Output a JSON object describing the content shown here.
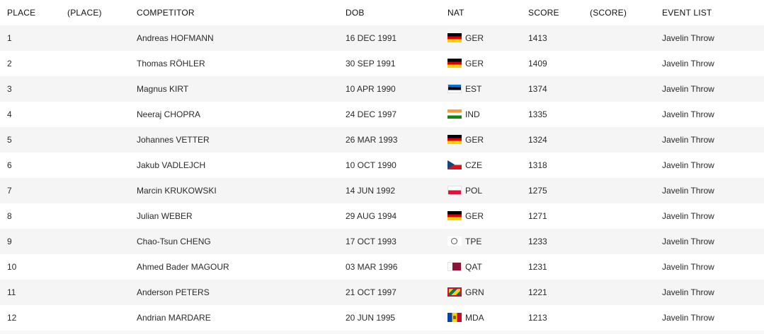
{
  "table": {
    "headers": {
      "place": "PLACE",
      "place_alt": "(PLACE)",
      "competitor": "COMPETITOR",
      "dob": "DOB",
      "nat": "NAT",
      "score": "SCORE",
      "score_alt": "(SCORE)",
      "event_list": "EVENT LIST"
    },
    "rows": [
      {
        "place": "1",
        "competitor": "Andreas HOFMANN",
        "dob": "16 DEC 1991",
        "nat": "GER",
        "flag_icon": "germany-flag-icon",
        "score": "1413",
        "event": "Javelin Throw"
      },
      {
        "place": "2",
        "competitor": "Thomas RÖHLER",
        "dob": "30 SEP 1991",
        "nat": "GER",
        "flag_icon": "germany-flag-icon",
        "score": "1409",
        "event": "Javelin Throw"
      },
      {
        "place": "3",
        "competitor": "Magnus KIRT",
        "dob": "10 APR 1990",
        "nat": "EST",
        "flag_icon": "estonia-flag-icon",
        "score": "1374",
        "event": "Javelin Throw"
      },
      {
        "place": "4",
        "competitor": "Neeraj CHOPRA",
        "dob": "24 DEC 1997",
        "nat": "IND",
        "flag_icon": "india-flag-icon",
        "score": "1335",
        "event": "Javelin Throw"
      },
      {
        "place": "5",
        "competitor": "Johannes VETTER",
        "dob": "26 MAR 1993",
        "nat": "GER",
        "flag_icon": "germany-flag-icon",
        "score": "1324",
        "event": "Javelin Throw"
      },
      {
        "place": "6",
        "competitor": "Jakub VADLEJCH",
        "dob": "10 OCT 1990",
        "nat": "CZE",
        "flag_icon": "czechia-flag-icon",
        "score": "1318",
        "event": "Javelin Throw"
      },
      {
        "place": "7",
        "competitor": "Marcin KRUKOWSKI",
        "dob": "14 JUN 1992",
        "nat": "POL",
        "flag_icon": "poland-flag-icon",
        "score": "1275",
        "event": "Javelin Throw"
      },
      {
        "place": "8",
        "competitor": "Julian WEBER",
        "dob": "29 AUG 1994",
        "nat": "GER",
        "flag_icon": "germany-flag-icon",
        "score": "1271",
        "event": "Javelin Throw"
      },
      {
        "place": "9",
        "competitor": "Chao-Tsun CHENG",
        "dob": "17 OCT 1993",
        "nat": "TPE",
        "flag_icon": "chinese-taipei-flag-icon",
        "score": "1233",
        "event": "Javelin Throw"
      },
      {
        "place": "10",
        "competitor": "Ahmed Bader MAGOUR",
        "dob": "03 MAR 1996",
        "nat": "QAT",
        "flag_icon": "qatar-flag-icon",
        "score": "1231",
        "event": "Javelin Throw"
      },
      {
        "place": "11",
        "competitor": "Anderson PETERS",
        "dob": "21 OCT 1997",
        "nat": "GRN",
        "flag_icon": "grenada-flag-icon",
        "score": "1221",
        "event": "Javelin Throw"
      },
      {
        "place": "12",
        "competitor": "Andrian MARDARE",
        "dob": "20 JUN 1995",
        "nat": "MDA",
        "flag_icon": "moldova-flag-icon",
        "score": "1213",
        "event": "Javelin Throw"
      }
    ]
  }
}
